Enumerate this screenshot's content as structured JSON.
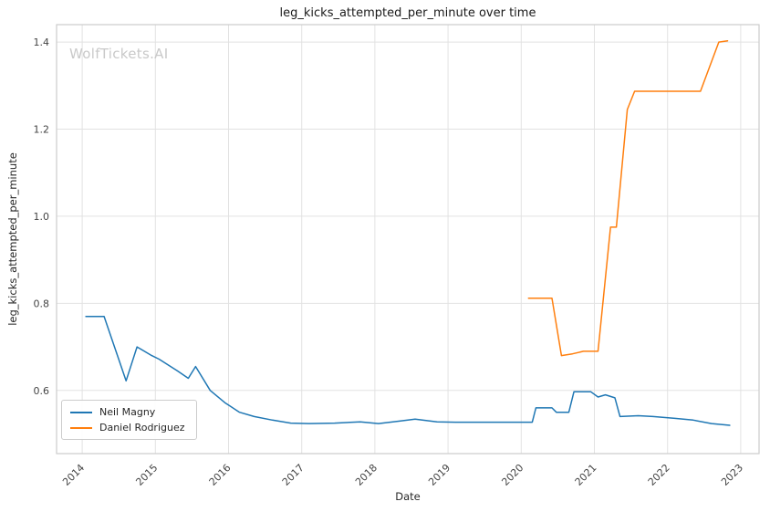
{
  "watermark": "WolfTickets.AI",
  "chart_data": {
    "type": "line",
    "title": "leg_kicks_attempted_per_minute over time",
    "xlabel": "Date",
    "ylabel": "leg_kicks_attempted_per_minute",
    "xlim": [
      2013.65,
      2023.25
    ],
    "ylim": [
      0.455,
      1.44
    ],
    "xticks": [
      2014,
      2015,
      2016,
      2017,
      2018,
      2019,
      2020,
      2021,
      2022,
      2023
    ],
    "yticks": [
      0.6,
      0.8,
      1.0,
      1.2,
      1.4
    ],
    "grid": true,
    "legend_position": "lower left",
    "colors": {
      "grid": "#e2e2e2",
      "border": "#cccccc",
      "tick_text": "#444444",
      "neil_magny": "#1f77b4",
      "daniel_rodriguez": "#ff7f0e"
    },
    "series": [
      {
        "name": "Neil Magny",
        "color": "#1f77b4",
        "x": [
          2014.05,
          2014.3,
          2014.6,
          2014.75,
          2014.95,
          2015.05,
          2015.3,
          2015.45,
          2015.55,
          2015.75,
          2015.95,
          2016.15,
          2016.35,
          2016.6,
          2016.85,
          2017.1,
          2017.45,
          2017.8,
          2018.05,
          2018.35,
          2018.55,
          2018.85,
          2019.1,
          2019.5,
          2019.9,
          2020.15,
          2020.2,
          2020.42,
          2020.48,
          2020.65,
          2020.72,
          2020.95,
          2021.05,
          2021.15,
          2021.28,
          2021.35,
          2021.6,
          2021.8,
          2022.1,
          2022.35,
          2022.6,
          2022.85
        ],
        "y": [
          0.77,
          0.77,
          0.622,
          0.7,
          0.68,
          0.672,
          0.645,
          0.628,
          0.655,
          0.6,
          0.572,
          0.55,
          0.54,
          0.532,
          0.525,
          0.524,
          0.525,
          0.528,
          0.524,
          0.53,
          0.534,
          0.528,
          0.527,
          0.527,
          0.527,
          0.527,
          0.56,
          0.56,
          0.55,
          0.55,
          0.597,
          0.597,
          0.585,
          0.59,
          0.583,
          0.54,
          0.542,
          0.54,
          0.536,
          0.532,
          0.524,
          0.52
        ]
      },
      {
        "name": "Daniel Rodriguez",
        "color": "#ff7f0e",
        "x": [
          2020.1,
          2020.42,
          2020.55,
          2020.7,
          2020.85,
          2021.05,
          2021.22,
          2021.3,
          2021.45,
          2021.55,
          2022.45,
          2022.7,
          2022.82
        ],
        "y": [
          0.812,
          0.812,
          0.68,
          0.684,
          0.69,
          0.69,
          0.975,
          0.975,
          1.245,
          1.287,
          1.287,
          1.4,
          1.403
        ]
      }
    ]
  }
}
